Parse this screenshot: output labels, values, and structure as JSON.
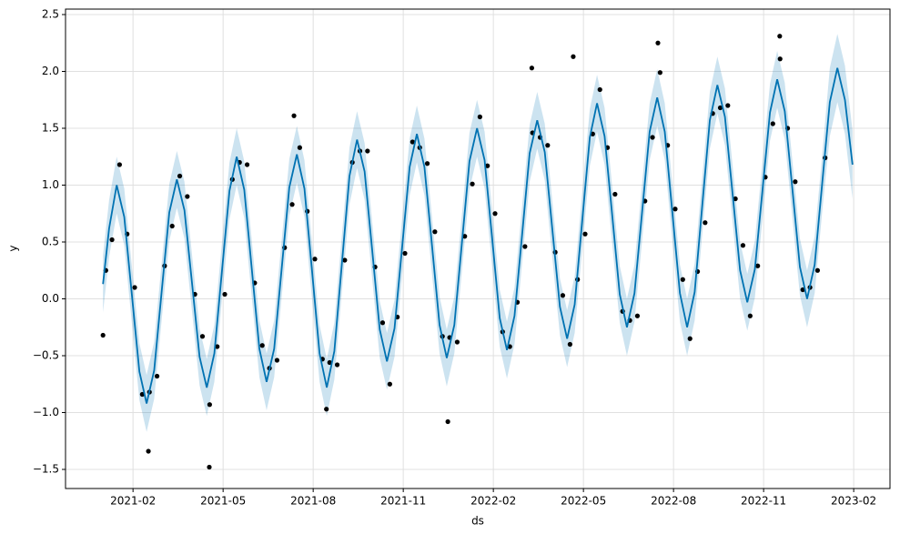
{
  "chart_data": {
    "type": "line",
    "grid": true,
    "x_label": "ds",
    "y_label": "y",
    "xlim": [
      2020.896,
      2023.184
    ],
    "ylim": [
      -1.668,
      2.548
    ],
    "xticks": [
      {
        "value": 2021.0833,
        "label": "2021-02"
      },
      {
        "value": 2021.3333,
        "label": "2021-05"
      },
      {
        "value": 2021.5833,
        "label": "2021-08"
      },
      {
        "value": 2021.8333,
        "label": "2021-11"
      },
      {
        "value": 2022.0833,
        "label": "2022-02"
      },
      {
        "value": 2022.3333,
        "label": "2022-05"
      },
      {
        "value": 2022.5833,
        "label": "2022-08"
      },
      {
        "value": 2022.8333,
        "label": "2022-11"
      },
      {
        "value": 2023.0833,
        "label": "2023-02"
      }
    ],
    "yticks": [
      {
        "value": -1.5,
        "label": "−1.5"
      },
      {
        "value": -1.0,
        "label": "−1.0"
      },
      {
        "value": -0.5,
        "label": "−0.5"
      },
      {
        "value": 0,
        "label": "0.0"
      },
      0.5,
      {
        "value": 1.0,
        "label": "1.0"
      },
      1.5,
      {
        "value": 2.0,
        "label": "2.0"
      },
      2.5
    ],
    "line_color": "#0072B2",
    "band_color": "#0072B2",
    "point_color": "#000000",
    "x": [
      2021.0,
      2021.017,
      2021.038,
      2021.059,
      2021.08,
      2021.101,
      2021.121,
      2021.142,
      2021.163,
      2021.184,
      2021.205,
      2021.226,
      2021.247,
      2021.268,
      2021.288,
      2021.309,
      2021.33,
      2021.351,
      2021.371,
      2021.392,
      2021.413,
      2021.434,
      2021.454,
      2021.475,
      2021.496,
      2021.517,
      2021.538,
      2021.559,
      2021.58,
      2021.601,
      2021.621,
      2021.642,
      2021.663,
      2021.684,
      2021.705,
      2021.726,
      2021.747,
      2021.768,
      2021.788,
      2021.809,
      2021.83,
      2021.851,
      2021.871,
      2021.892,
      2021.913,
      2021.934,
      2021.954,
      2021.975,
      2021.996,
      2022.017,
      2022.038,
      2022.059,
      2022.08,
      2022.101,
      2022.121,
      2022.142,
      2022.163,
      2022.184,
      2022.205,
      2022.226,
      2022.247,
      2022.268,
      2022.288,
      2022.309,
      2022.33,
      2022.351,
      2022.371,
      2022.392,
      2022.413,
      2022.434,
      2022.454,
      2022.475,
      2022.496,
      2022.517,
      2022.538,
      2022.559,
      2022.58,
      2022.601,
      2022.621,
      2022.642,
      2022.663,
      2022.684,
      2022.705,
      2022.726,
      2022.747,
      2022.768,
      2022.788,
      2022.809,
      2022.83,
      2022.851,
      2022.871,
      2022.892,
      2022.913,
      2022.934,
      2022.954,
      2022.975,
      2022.996,
      2023.017,
      2023.038,
      2023.059,
      2023.08
    ],
    "yhat": [
      0.13,
      0.62,
      1.0,
      0.72,
      0.04,
      -0.64,
      -0.92,
      -0.63,
      0.07,
      0.76,
      1.05,
      0.78,
      0.14,
      -0.51,
      -0.78,
      -0.48,
      0.24,
      0.95,
      1.25,
      0.96,
      0.26,
      -0.44,
      -0.73,
      -0.44,
      0.27,
      0.98,
      1.27,
      0.97,
      0.25,
      -0.48,
      -0.78,
      -0.46,
      0.31,
      1.08,
      1.4,
      1.12,
      0.43,
      -0.27,
      -0.55,
      -0.26,
      0.45,
      1.16,
      1.45,
      1.16,
      0.47,
      -0.23,
      -0.52,
      -0.23,
      0.49,
      1.21,
      1.5,
      1.22,
      0.53,
      -0.17,
      -0.45,
      -0.15,
      0.56,
      1.28,
      1.57,
      1.29,
      0.61,
      -0.07,
      -0.35,
      -0.05,
      0.69,
      1.42,
      1.72,
      1.43,
      0.74,
      0.04,
      -0.25,
      0.05,
      0.76,
      1.47,
      1.77,
      1.47,
      0.76,
      0.05,
      -0.25,
      0.06,
      0.82,
      1.57,
      1.88,
      1.6,
      0.93,
      0.25,
      -0.03,
      0.26,
      0.95,
      1.64,
      1.93,
      1.65,
      0.97,
      0.28,
      0.0,
      0.3,
      1.02,
      1.73,
      2.03,
      1.75,
      1.18
    ],
    "yhat_upper": [
      0.38,
      0.87,
      1.25,
      0.97,
      0.29,
      -0.39,
      -0.67,
      -0.38,
      0.32,
      1.01,
      1.3,
      1.03,
      0.39,
      -0.26,
      -0.53,
      -0.23,
      0.49,
      1.2,
      1.5,
      1.21,
      0.51,
      -0.19,
      -0.48,
      -0.19,
      0.52,
      1.23,
      1.52,
      1.22,
      0.5,
      -0.23,
      -0.53,
      -0.21,
      0.56,
      1.33,
      1.65,
      1.37,
      0.68,
      -0.02,
      -0.3,
      -0.01,
      0.7,
      1.41,
      1.7,
      1.41,
      0.72,
      0.02,
      -0.27,
      0.02,
      0.74,
      1.46,
      1.75,
      1.47,
      0.78,
      0.08,
      -0.2,
      0.1,
      0.81,
      1.53,
      1.82,
      1.54,
      0.86,
      0.18,
      -0.1,
      0.2,
      0.94,
      1.67,
      1.97,
      1.68,
      0.99,
      0.29,
      0.0,
      0.3,
      1.01,
      1.72,
      2.02,
      1.72,
      1.01,
      0.3,
      0.0,
      0.31,
      1.07,
      1.82,
      2.13,
      1.85,
      1.18,
      0.5,
      0.22,
      0.51,
      1.2,
      1.89,
      2.18,
      1.9,
      1.22,
      0.53,
      0.25,
      0.55,
      1.27,
      2.03,
      2.33,
      2.05,
      1.48
    ],
    "yhat_lower": [
      -0.12,
      0.37,
      0.75,
      0.47,
      -0.21,
      -0.89,
      -1.17,
      -0.88,
      -0.18,
      0.51,
      0.8,
      0.53,
      -0.11,
      -0.76,
      -1.03,
      -0.73,
      -0.01,
      0.7,
      1.0,
      0.71,
      0.01,
      -0.69,
      -0.98,
      -0.69,
      0.02,
      0.73,
      1.02,
      0.72,
      0.0,
      -0.73,
      -1.03,
      -0.71,
      0.06,
      0.83,
      1.15,
      0.87,
      0.18,
      -0.52,
      -0.8,
      -0.51,
      0.2,
      0.91,
      1.2,
      0.91,
      0.22,
      -0.48,
      -0.77,
      -0.48,
      0.24,
      0.96,
      1.25,
      0.97,
      0.28,
      -0.42,
      -0.7,
      -0.4,
      0.31,
      1.03,
      1.32,
      1.04,
      0.36,
      -0.32,
      -0.6,
      -0.3,
      0.44,
      1.17,
      1.47,
      1.18,
      0.49,
      -0.21,
      -0.5,
      -0.2,
      0.51,
      1.22,
      1.52,
      1.22,
      0.51,
      -0.2,
      -0.5,
      -0.19,
      0.57,
      1.32,
      1.63,
      1.35,
      0.68,
      0.0,
      -0.28,
      0.01,
      0.7,
      1.39,
      1.68,
      1.4,
      0.72,
      0.03,
      -0.25,
      0.05,
      0.77,
      1.43,
      1.73,
      1.45,
      0.88
    ],
    "points": {
      "x": [
        2021.008,
        2021.025,
        2021.046,
        2021.067,
        2021.088,
        2021.109,
        2021.129,
        2021.15,
        2021.171,
        2021.192,
        2021.213,
        2021.234,
        2021.255,
        2021.276,
        2021.296,
        2021.317,
        2021.338,
        2021.359,
        2021.379,
        2021.4,
        2021.421,
        2021.442,
        2021.462,
        2021.483,
        2021.504,
        2021.525,
        2021.546,
        2021.567,
        2021.588,
        2021.609,
        2021.629,
        2021.65,
        2021.671,
        2021.692,
        2021.713,
        2021.734,
        2021.755,
        2021.776,
        2021.796,
        2021.817,
        2021.838,
        2021.859,
        2021.879,
        2021.9,
        2021.921,
        2021.942,
        2021.962,
        2021.983,
        2022.004,
        2022.025,
        2022.046,
        2022.067,
        2022.088,
        2022.109,
        2022.129,
        2022.15,
        2022.171,
        2022.192,
        2022.213,
        2022.234,
        2022.255,
        2022.276,
        2022.296,
        2022.317,
        2022.338,
        2022.359,
        2022.379,
        2022.4,
        2022.421,
        2022.442,
        2022.462,
        2022.483,
        2022.504,
        2022.525,
        2022.546,
        2022.567,
        2022.588,
        2022.609,
        2022.629,
        2022.65,
        2022.671,
        2022.692,
        2022.713,
        2022.734,
        2022.755,
        2022.776,
        2022.796,
        2022.817,
        2022.838,
        2022.859,
        2022.879,
        2022.9,
        2022.921,
        2022.942,
        2022.962,
        2022.983,
        2023.004,
        2021.0,
        2021.295,
        2021.957,
        2022.54,
        2022.878,
        2022.305,
        2022.19,
        2021.126,
        2021.62,
        2021.53
      ],
      "y": [
        0.25,
        0.52,
        1.18,
        0.57,
        0.1,
        -0.84,
        -0.82,
        -0.68,
        0.29,
        0.64,
        1.08,
        0.9,
        0.04,
        -0.33,
        -0.93,
        -0.42,
        0.04,
        1.05,
        1.2,
        1.18,
        0.14,
        -0.41,
        -0.61,
        -0.54,
        0.45,
        0.83,
        1.33,
        0.77,
        0.35,
        -0.53,
        -0.56,
        -0.58,
        0.34,
        1.2,
        1.3,
        1.3,
        0.28,
        -0.21,
        -0.75,
        -0.16,
        0.4,
        1.38,
        1.33,
        1.19,
        0.59,
        -0.33,
        -0.34,
        -0.38,
        0.55,
        1.01,
        1.6,
        1.17,
        0.75,
        -0.29,
        -0.42,
        -0.03,
        0.46,
        1.46,
        1.42,
        1.35,
        0.41,
        0.03,
        -0.4,
        0.17,
        0.57,
        1.45,
        1.84,
        1.33,
        0.92,
        -0.11,
        -0.19,
        -0.15,
        0.86,
        1.42,
        1.99,
        1.35,
        0.79,
        0.17,
        -0.35,
        0.24,
        0.67,
        1.63,
        1.68,
        1.7,
        0.88,
        0.47,
        -0.15,
        0.29,
        1.07,
        1.54,
        2.11,
        1.5,
        1.03,
        0.08,
        0.1,
        0.25,
        1.24,
        -0.32,
        -1.48,
        -1.08,
        2.25,
        2.31,
        2.13,
        2.03,
        -1.34,
        -0.97,
        1.61
      ]
    }
  }
}
